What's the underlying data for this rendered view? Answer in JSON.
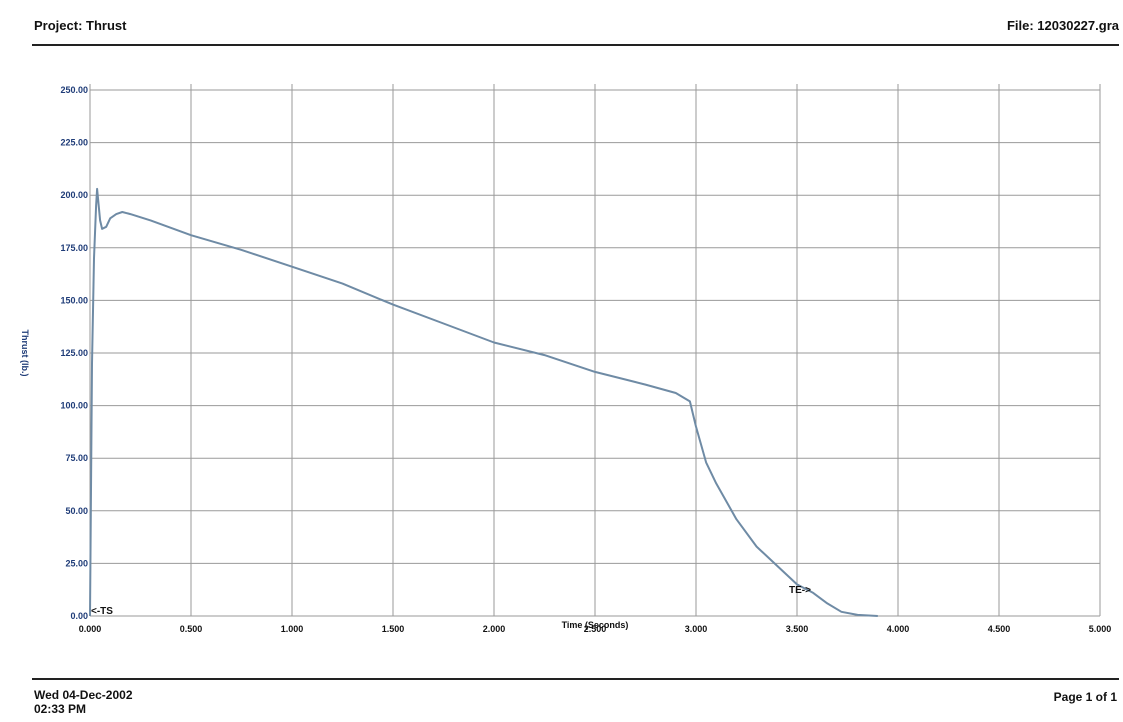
{
  "header": {
    "project": "Project: Thrust",
    "file": "File: 12030227.gra"
  },
  "footer": {
    "date": "Wed 04-Dec-2002",
    "time": "02:33 PM",
    "page": "Page 1 of 1"
  },
  "colors": {
    "curve": "#6f8ba5",
    "grid": "#9a9a9a",
    "ytick": "#1f3c78"
  },
  "chart_data": {
    "type": "line",
    "xlabel": "Time (Seconds)",
    "ylabel": "Thrust (lb.)",
    "xlim": [
      0,
      5
    ],
    "ylim": [
      0,
      250
    ],
    "xticks": [
      0,
      0.5,
      1,
      1.5,
      2,
      2.5,
      3,
      3.5,
      4,
      4.5,
      5
    ],
    "xtick_labels": [
      "0.000",
      "0.500",
      "1.000",
      "1.500",
      "2.000",
      "2.500",
      "3.000",
      "3.500",
      "4.000",
      "4.500",
      "5.000"
    ],
    "yticks": [
      0,
      25,
      50,
      75,
      100,
      125,
      150,
      175,
      200,
      225,
      250
    ],
    "ytick_labels": [
      "0.00",
      "25.00",
      "50.00",
      "75.00",
      "100.00",
      "125.00",
      "150.00",
      "175.00",
      "200.00",
      "225.00",
      "250.00"
    ],
    "grid": true,
    "annotations": [
      {
        "text": "<-TS",
        "x": 0.0,
        "y": 0
      },
      {
        "text": "TE->",
        "x": 3.5,
        "y": 10
      }
    ],
    "series": [
      {
        "x": [
          0.0,
          0.005,
          0.01,
          0.02,
          0.03,
          0.035,
          0.04,
          0.05,
          0.06,
          0.08,
          0.1,
          0.13,
          0.16,
          0.2,
          0.3,
          0.5,
          0.75,
          1.0,
          1.25,
          1.5,
          1.75,
          2.0,
          2.25,
          2.5,
          2.75,
          2.9,
          2.97,
          3.0,
          3.05,
          3.1,
          3.2,
          3.3,
          3.4,
          3.5,
          3.58,
          3.65,
          3.72,
          3.8,
          3.9
        ],
        "y": [
          0,
          60,
          120,
          170,
          195,
          203,
          198,
          188,
          184,
          185,
          189,
          191,
          192,
          191,
          188,
          181,
          174,
          166,
          158,
          148,
          139,
          130,
          124,
          116,
          110,
          106,
          102,
          90,
          73,
          63,
          46,
          33,
          24,
          15,
          11,
          6,
          2,
          0.5,
          0
        ]
      }
    ]
  }
}
